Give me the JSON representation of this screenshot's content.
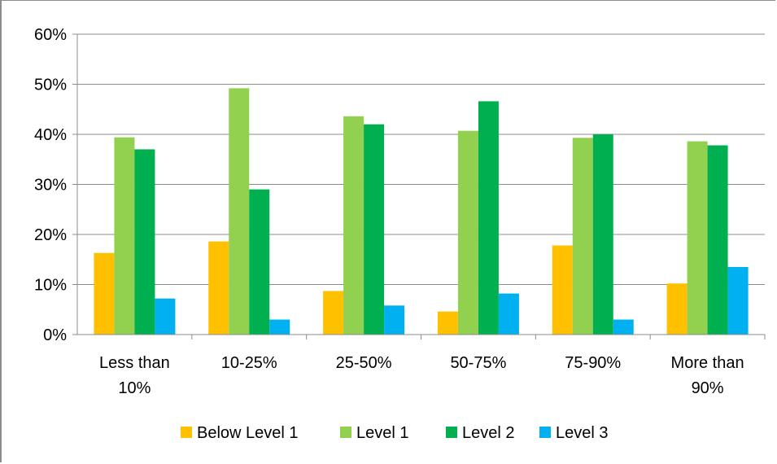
{
  "chart_data": {
    "type": "bar",
    "categories": [
      [
        "Less than",
        "10%"
      ],
      [
        "10-25%"
      ],
      [
        "25-50%"
      ],
      [
        "50-75%"
      ],
      [
        "75-90%"
      ],
      [
        "More than",
        "90%"
      ]
    ],
    "series": [
      {
        "name": "Below Level 1",
        "color": "#FFC000",
        "values": [
          16.3,
          18.6,
          8.7,
          4.6,
          17.8,
          10.2
        ]
      },
      {
        "name": "Level 1",
        "color": "#92D050",
        "values": [
          39.4,
          49.2,
          43.6,
          40.7,
          39.3,
          38.6
        ]
      },
      {
        "name": "Level 2",
        "color": "#00B050",
        "values": [
          37.0,
          29.0,
          42.0,
          46.6,
          40.0,
          37.8
        ]
      },
      {
        "name": "Level 3",
        "color": "#00B0F0",
        "values": [
          7.2,
          3.0,
          5.8,
          8.2,
          3.0,
          13.5
        ]
      }
    ],
    "y_ticks": [
      "0%",
      "10%",
      "20%",
      "30%",
      "40%",
      "50%",
      "60%"
    ],
    "ylim": [
      0,
      60
    ],
    "grid": true,
    "legend_position": "bottom",
    "title": "",
    "xlabel": "",
    "ylabel": ""
  }
}
